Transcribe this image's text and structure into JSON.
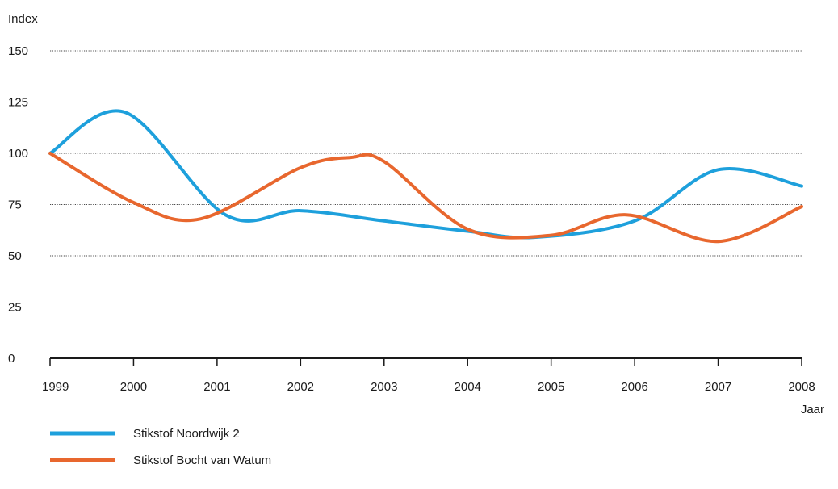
{
  "chart_data": {
    "type": "line",
    "ylabel": "Index",
    "xlabel": "Jaar",
    "x": [
      1999,
      2000,
      2001,
      2002,
      2003,
      2004,
      2005,
      2006,
      2007,
      2008
    ],
    "x_tick_labels": [
      "1999",
      "2000",
      "2001",
      "2002",
      "2003",
      "2004",
      "2005",
      "2006",
      "2007",
      "2008"
    ],
    "y_ticks": [
      0,
      25,
      50,
      75,
      100,
      125,
      150
    ],
    "y_tick_labels": [
      "0",
      "25",
      "50",
      "75",
      "100",
      "125",
      "150"
    ],
    "ylim": [
      0,
      150
    ],
    "grid": true,
    "legend_position": "bottom-left",
    "series": [
      {
        "name": "Stikstof Noordwijk 2",
        "color": "#1ea0dc",
        "points": [
          [
            1999.0,
            100
          ],
          [
            1999.9,
            120
          ],
          [
            2001.1,
            70
          ],
          [
            2002.0,
            72
          ],
          [
            2003.0,
            67
          ],
          [
            2004.0,
            62
          ],
          [
            2004.8,
            59
          ],
          [
            2006.0,
            67
          ],
          [
            2007.0,
            92
          ],
          [
            2008.0,
            84
          ]
        ]
      },
      {
        "name": "Stikstof Bocht van Watum",
        "color": "#e8672e",
        "points": [
          [
            1999.0,
            100
          ],
          [
            2000.0,
            76
          ],
          [
            2000.8,
            68
          ],
          [
            2002.0,
            93
          ],
          [
            2002.6,
            98
          ],
          [
            2003.0,
            96
          ],
          [
            2004.0,
            63
          ],
          [
            2005.0,
            60
          ],
          [
            2005.9,
            70
          ],
          [
            2007.0,
            57
          ],
          [
            2008.0,
            74
          ]
        ]
      }
    ]
  }
}
